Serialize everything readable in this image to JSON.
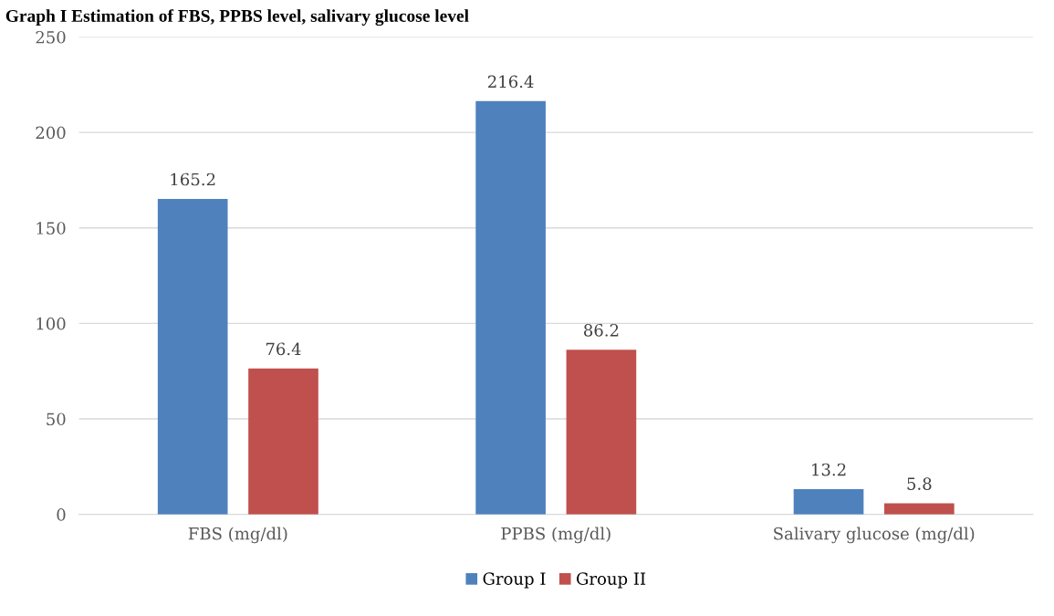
{
  "chart_data": {
    "type": "bar",
    "title": "Graph I Estimation of FBS, PPBS level, salivary glucose level",
    "categories": [
      "FBS (mg/dl)",
      "PPBS (mg/dl)",
      "Salivary glucose (mg/dl)"
    ],
    "series": [
      {
        "name": "Group I",
        "color": "#4f81bd",
        "values": [
          165.2,
          216.4,
          13.2
        ]
      },
      {
        "name": "Group II",
        "color": "#c0504d",
        "values": [
          76.4,
          86.2,
          5.8
        ]
      }
    ],
    "ylim": [
      0,
      250
    ],
    "yticks": [
      0,
      50,
      100,
      150,
      200,
      250
    ],
    "grid": "y",
    "legend": "bottom",
    "data_labels": true
  }
}
